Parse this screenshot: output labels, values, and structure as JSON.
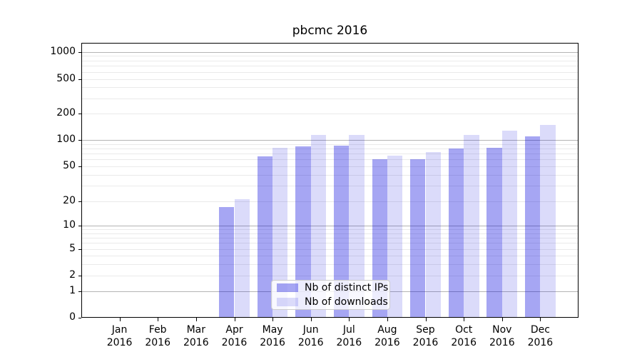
{
  "chart_data": {
    "type": "bar",
    "title": "pbcmc 2016",
    "x_categories": [
      {
        "month": "Jan",
        "year": "2016"
      },
      {
        "month": "Feb",
        "year": "2016"
      },
      {
        "month": "Mar",
        "year": "2016"
      },
      {
        "month": "Apr",
        "year": "2016"
      },
      {
        "month": "May",
        "year": "2016"
      },
      {
        "month": "Jun",
        "year": "2016"
      },
      {
        "month": "Jul",
        "year": "2016"
      },
      {
        "month": "Aug",
        "year": "2016"
      },
      {
        "month": "Sep",
        "year": "2016"
      },
      {
        "month": "Oct",
        "year": "2016"
      },
      {
        "month": "Nov",
        "year": "2016"
      },
      {
        "month": "Dec",
        "year": "2016"
      }
    ],
    "series": [
      {
        "name": "Nb of distinct IPs",
        "color": "rgba(0,0,221,0.35)",
        "values": [
          0,
          0,
          0,
          17,
          65,
          84,
          86,
          60,
          60,
          80,
          82,
          110
        ]
      },
      {
        "name": "Nb of downloads",
        "color": "rgba(0,0,221,0.14)",
        "values": [
          0,
          0,
          0,
          21,
          81,
          115,
          115,
          66,
          73,
          115,
          127,
          148
        ]
      }
    ],
    "y_ticks": [
      0,
      1,
      2,
      5,
      10,
      20,
      50,
      100,
      200,
      500,
      1000
    ],
    "y_scale": "symlog",
    "ylim": [
      0,
      1250
    ],
    "grid": true,
    "legend_position": "lower center",
    "colors": {
      "major_grid": "#b4b4b4",
      "minor_grid": "#eaeaea",
      "axis": "#000000",
      "text": "#000000"
    }
  }
}
